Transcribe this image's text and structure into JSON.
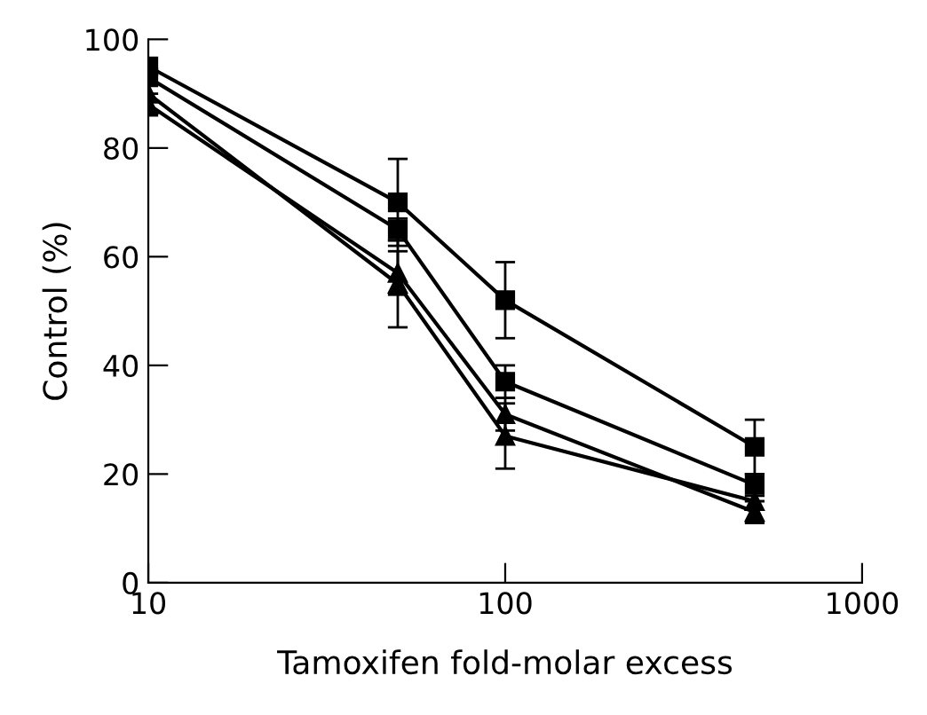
{
  "chart_data": {
    "type": "line",
    "xlabel": "Tamoxifen fold-molar excess",
    "ylabel": "Control (%)",
    "x": [
      10,
      50,
      100,
      500
    ],
    "log": "x",
    "xlim": [
      10,
      1000
    ],
    "xticks": [
      10,
      100,
      1000
    ],
    "ylim": [
      0,
      100
    ],
    "yticks": [
      0,
      20,
      40,
      60,
      80,
      100
    ],
    "grid": false,
    "line_style": "solid",
    "series": [
      {
        "color": "#000000",
        "marker": "square",
        "values": [
          95,
          70,
          52,
          25
        ],
        "errors": [
          null,
          8,
          7,
          5
        ]
      },
      {
        "color": "#000000",
        "marker": "square",
        "values": [
          93,
          65,
          37,
          18
        ],
        "errors": [
          null,
          2,
          3,
          2
        ]
      },
      {
        "color": "#000000",
        "marker": "triangle",
        "values": [
          88,
          57,
          31,
          13
        ],
        "errors": [
          2,
          4,
          3,
          2
        ]
      },
      {
        "color": "#000000",
        "marker": "triangle",
        "values": [
          90,
          55,
          27,
          15
        ],
        "errors": [
          null,
          8,
          6,
          null
        ]
      }
    ]
  }
}
